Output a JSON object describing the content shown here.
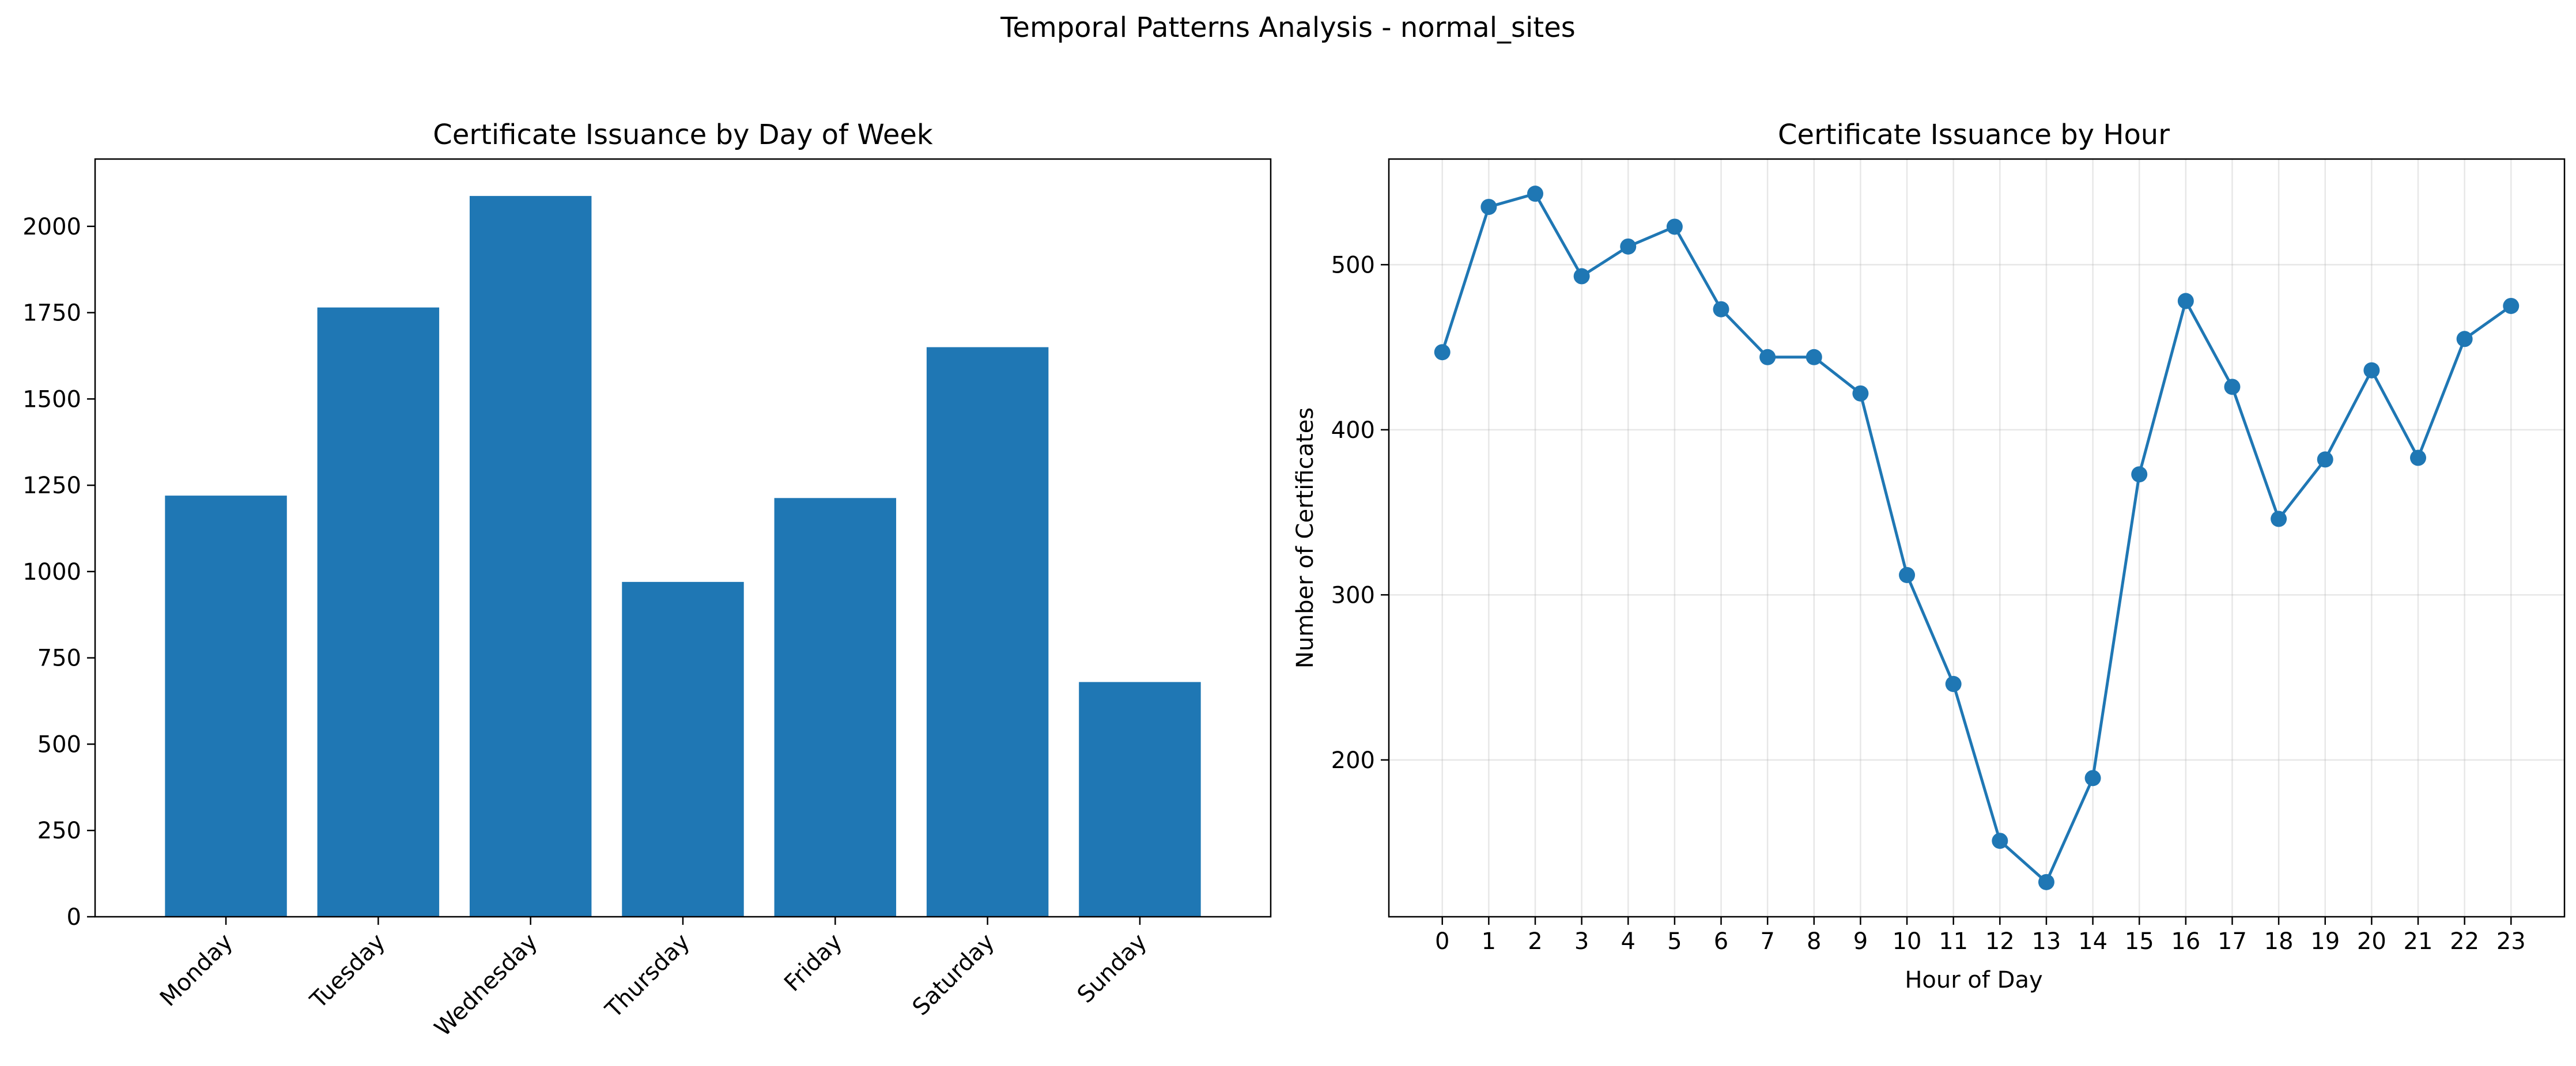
{
  "suptitle": "Temporal Patterns Analysis - normal_sites",
  "colors": {
    "bar": "#1f77b4",
    "line": "#1f77b4"
  },
  "chart_data": [
    {
      "type": "bar",
      "title": "Certificate Issuance by Day of Week",
      "xlabel": "",
      "ylabel": "",
      "categories": [
        "Monday",
        "Tuesday",
        "Wednesday",
        "Thursday",
        "Friday",
        "Saturday",
        "Sunday"
      ],
      "values": [
        1220,
        1765,
        2088,
        970,
        1213,
        1650,
        680
      ],
      "ylim": [
        0,
        2195
      ],
      "yticks": [
        0,
        250,
        500,
        750,
        1000,
        1250,
        1500,
        1750,
        2000
      ],
      "xtick_rotation": 45,
      "grid": false
    },
    {
      "type": "line",
      "title": "Certificate Issuance by Hour",
      "xlabel": "Hour of Day",
      "ylabel": "Number of Certificates",
      "x": [
        0,
        1,
        2,
        3,
        4,
        5,
        6,
        7,
        8,
        9,
        10,
        11,
        12,
        13,
        14,
        15,
        16,
        17,
        18,
        19,
        20,
        21,
        22,
        23
      ],
      "values": [
        447,
        535,
        543,
        493,
        511,
        523,
        473,
        444,
        444,
        422,
        312,
        246,
        151,
        126,
        189,
        373,
        478,
        426,
        346,
        382,
        436,
        383,
        455,
        475
      ],
      "xlim": [
        -1.15,
        24.15
      ],
      "ylim": [
        105,
        564
      ],
      "yticks": [
        200,
        300,
        400,
        500
      ],
      "marker": "circle",
      "grid": true
    }
  ]
}
